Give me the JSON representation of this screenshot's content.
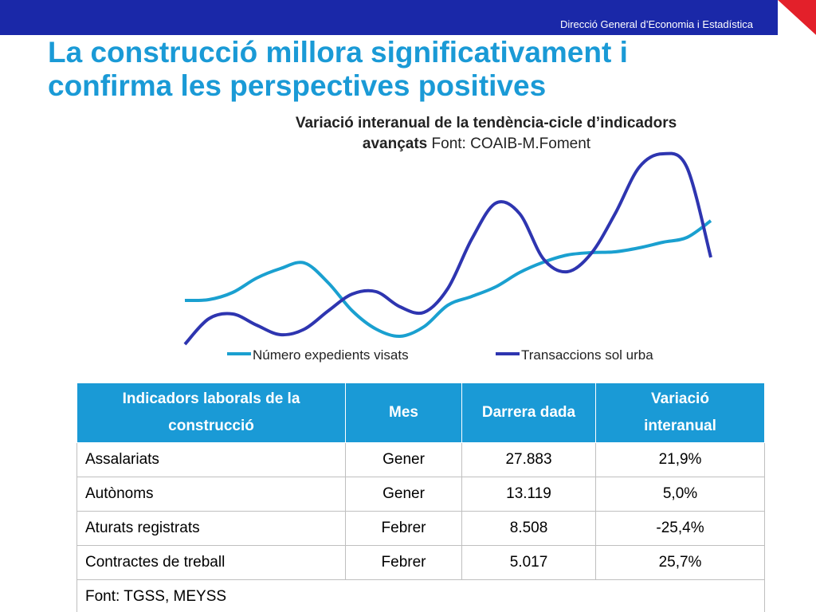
{
  "header": {
    "org": "Direcció General d’Economia i Estadística"
  },
  "title_lines": [
    "La construcció millora significativament i",
    "confirma les perspectives positives"
  ],
  "chart_data": {
    "type": "line",
    "title_lines": [
      "Variació interanual de la tendència-cicle d’indicadors",
      "avançats"
    ],
    "source": "Font: COAIB-M.Foment",
    "categories": [
      null,
      null,
      null,
      null,
      null,
      null,
      null,
      null,
      null,
      null,
      null,
      null,
      null,
      null,
      null,
      null,
      null,
      null,
      null,
      null,
      null,
      null,
      null
    ],
    "ylim": [
      0,
      260
    ],
    "series": [
      {
        "name": "Número expedients visats",
        "color": "#1aa0d0",
        "values": [
          63,
          64,
          73,
          91,
          103,
          110,
          85,
          50,
          27,
          18,
          30,
          57,
          68,
          80,
          98,
          111,
          120,
          123,
          124,
          129,
          136,
          142,
          163
        ]
      },
      {
        "name": "Transaccions sol urba",
        "color": "#2e35b0",
        "values": [
          8,
          40,
          46,
          32,
          20,
          27,
          50,
          71,
          74,
          55,
          48,
          78,
          140,
          185,
          172,
          115,
          99,
          122,
          172,
          230,
          247,
          230,
          117
        ]
      }
    ]
  },
  "table": {
    "header": [
      "Indicadors laborals de la construcció",
      "Mes",
      "Darrera dada",
      "Variació interanual"
    ],
    "rows": [
      [
        "Assalariats",
        "Gener",
        "27.883",
        "21,9%"
      ],
      [
        "Autònoms",
        "Gener",
        "13.119",
        "5,0%"
      ],
      [
        "Aturats registrats",
        "Febrer",
        "8.508",
        "-25,4%"
      ],
      [
        "Contractes de treball",
        "Febrer",
        "5.017",
        "25,7%"
      ]
    ],
    "source": "Font: TGSS, MEYSS"
  }
}
